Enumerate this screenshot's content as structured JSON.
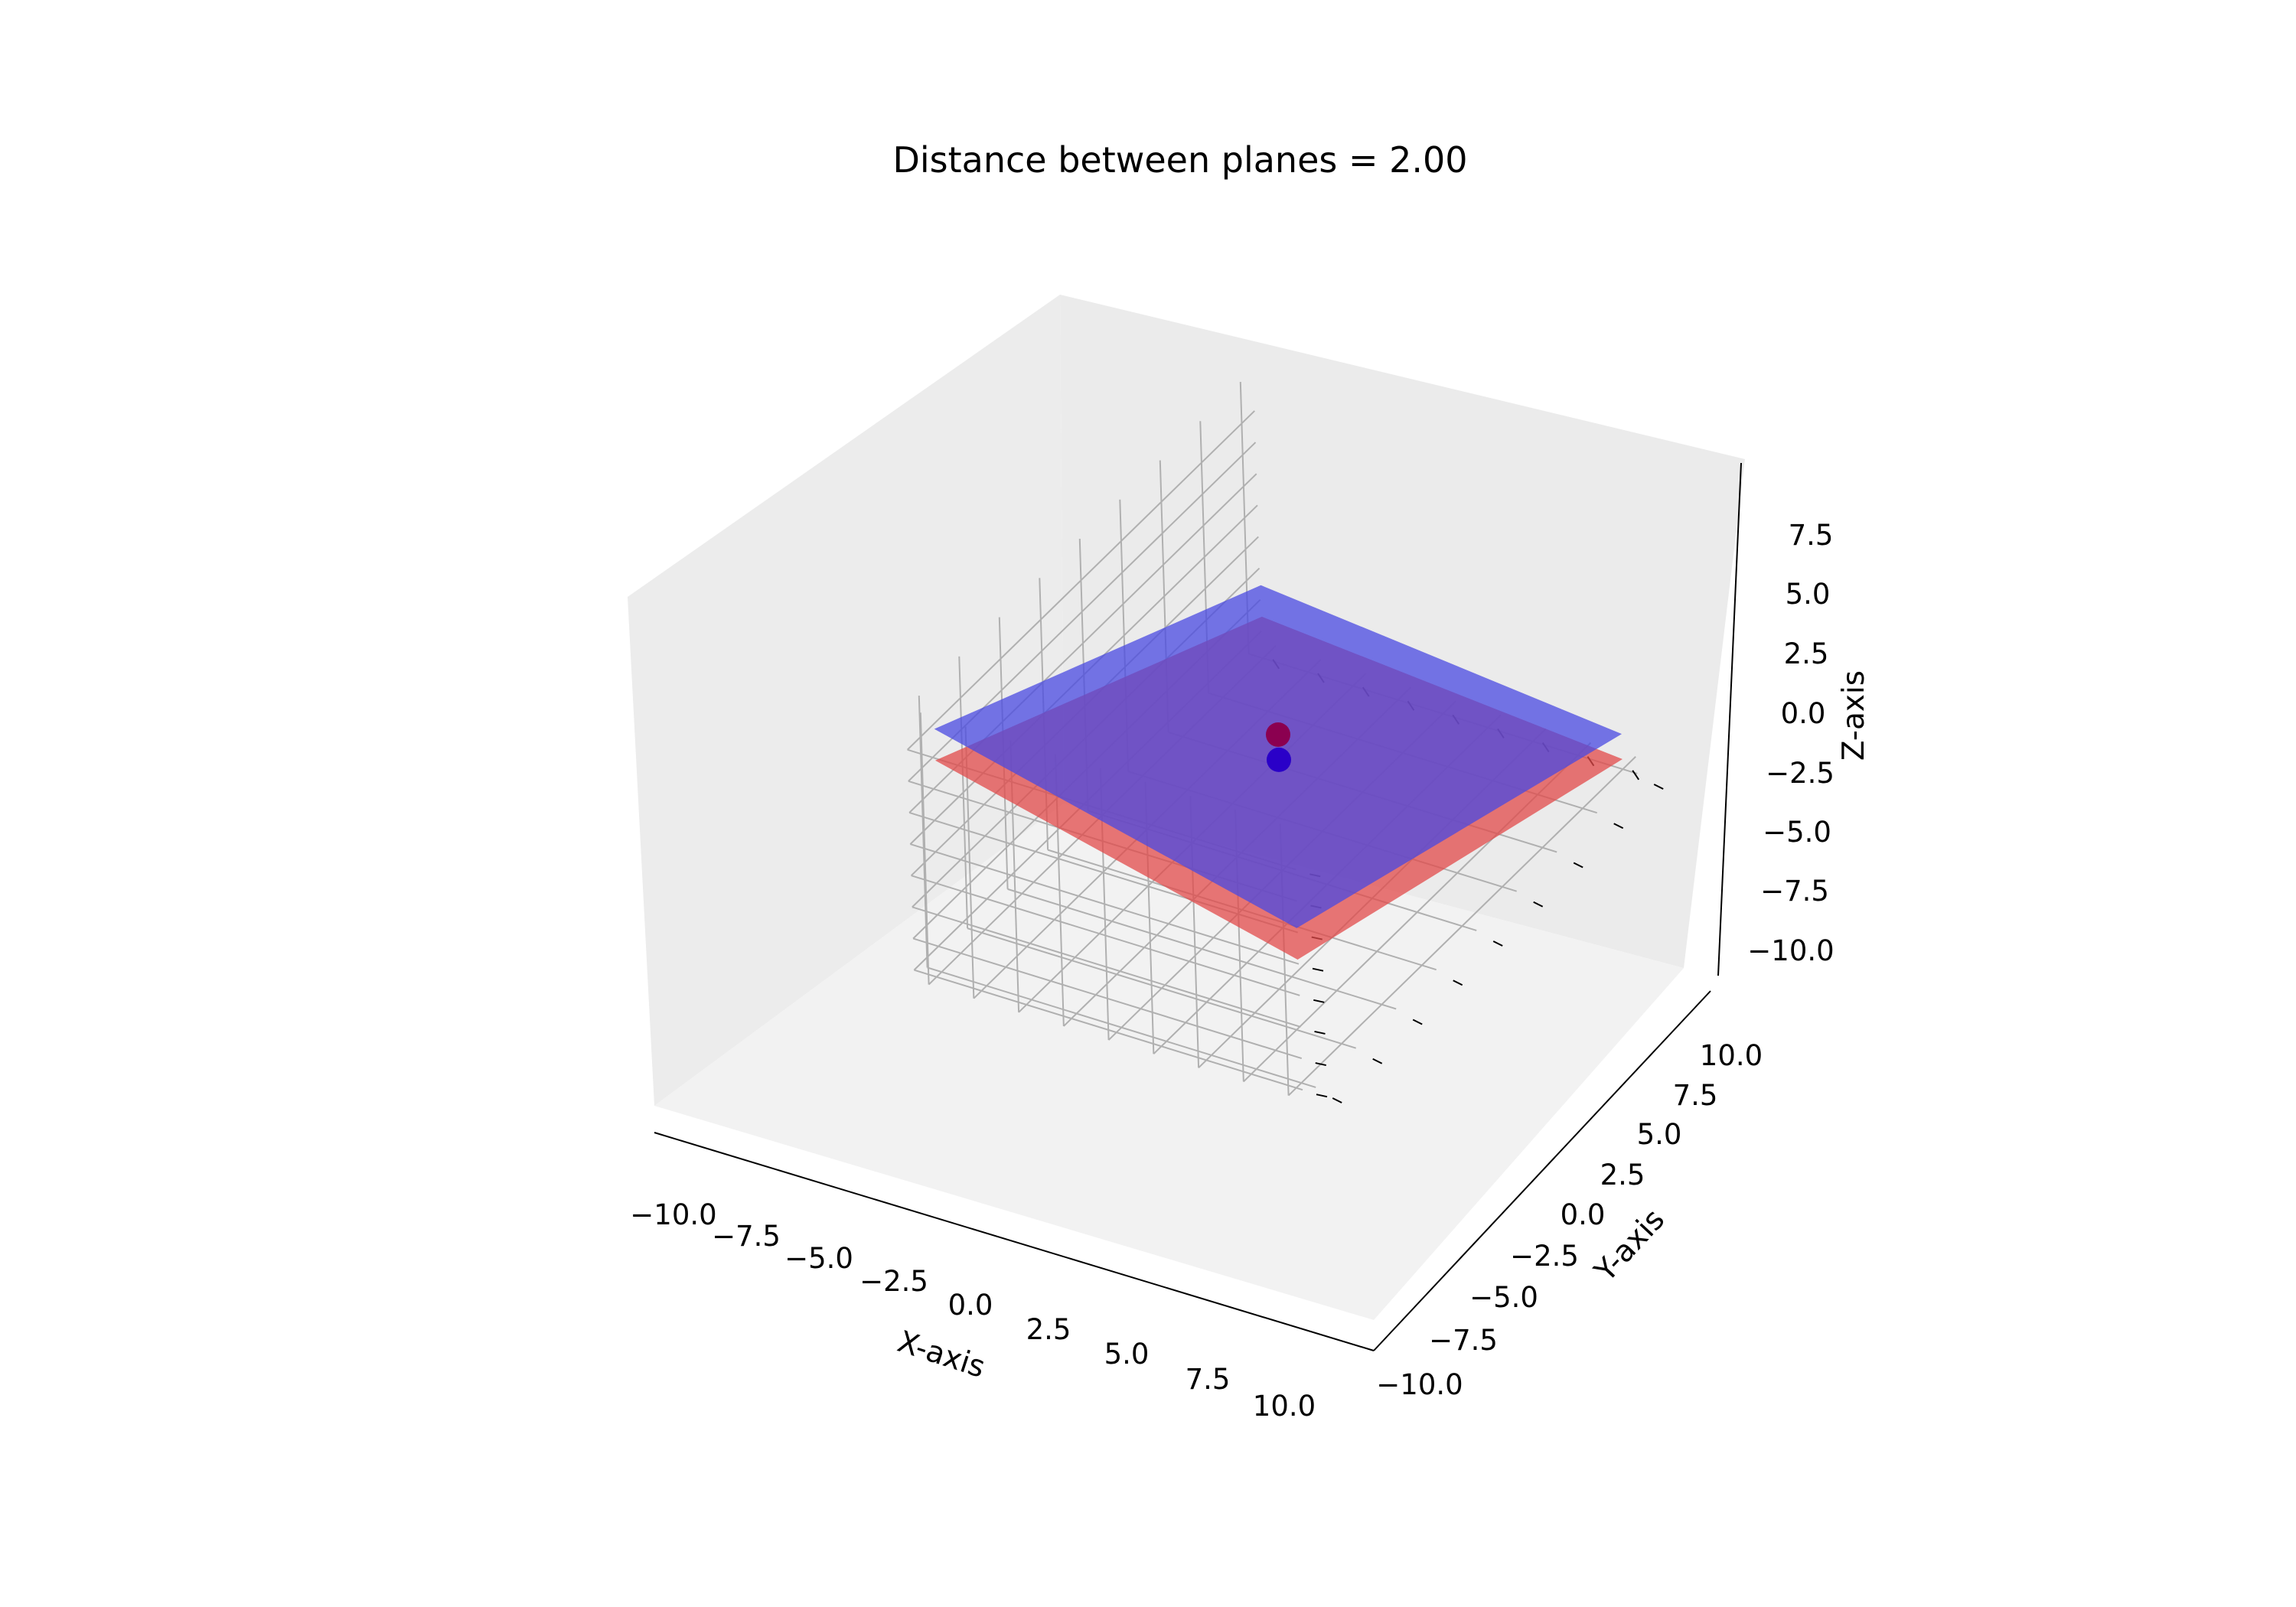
{
  "chart_data": {
    "type": "surface3d",
    "title": "Distance between planes = 2.00",
    "xlabel": "X-axis",
    "ylabel": "Y-axis",
    "zlabel": "Z-axis",
    "xlim": [
      -10,
      10
    ],
    "ylim": [
      -10,
      10
    ],
    "zlim": [
      -10,
      10
    ],
    "grid": true,
    "xticks": [
      "−10.0",
      "−7.5",
      "−5.0",
      "−2.5",
      "0.0",
      "2.5",
      "5.0",
      "7.5",
      "10.0"
    ],
    "yticks": [
      "−10.0",
      "−7.5",
      "−5.0",
      "−2.5",
      "0.0",
      "2.5",
      "5.0",
      "7.5",
      "10.0"
    ],
    "zticks": [
      "−10.0",
      "−7.5",
      "−5.0",
      "−2.5",
      "0.0",
      "2.5",
      "5.0",
      "7.5"
    ],
    "series": [
      {
        "kind": "plane",
        "color": "#e24a4a",
        "corners": [
          [
            -10,
            -10,
            -7.5
          ],
          [
            10,
            -10,
            -10
          ],
          [
            10,
            10,
            -1
          ],
          [
            -10,
            10,
            6
          ]
        ]
      },
      {
        "kind": "plane",
        "color": "#4a4ae2",
        "corners": [
          [
            -10,
            -10,
            -5
          ],
          [
            10,
            -10,
            -8
          ],
          [
            10,
            10,
            1.5
          ],
          [
            -10,
            10,
            8.5
          ]
        ]
      },
      {
        "kind": "point",
        "color": "#8b0050",
        "x": 0,
        "y": 0,
        "z": 0
      },
      {
        "kind": "point",
        "color": "#2a00c8",
        "x": 0,
        "y": 0,
        "z": -2
      }
    ]
  }
}
